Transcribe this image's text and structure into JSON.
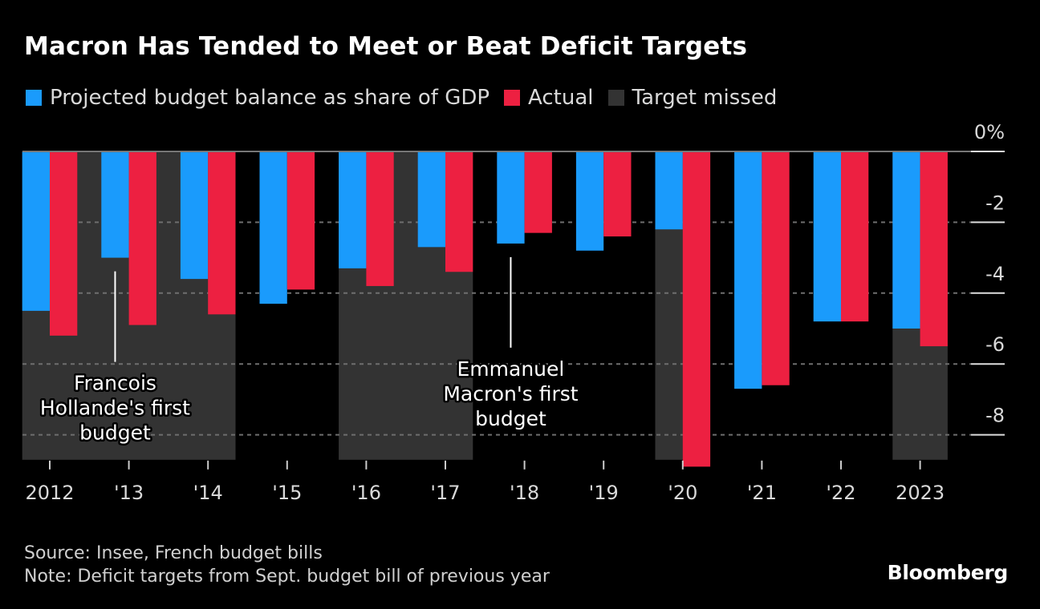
{
  "header": {
    "title": "Macron Has Tended to Meet or Beat Deficit Targets"
  },
  "legend": [
    {
      "label": "Projected budget balance as share of GDP",
      "color": "#1a9bfc"
    },
    {
      "label": "Actual",
      "color": "#ed2041"
    },
    {
      "label": "Target missed",
      "color": "#333333"
    }
  ],
  "footer": {
    "source": "Source: Insee, French budget bills",
    "note": "Note: Deficit targets from Sept. budget bill of previous year",
    "brand": "Bloomberg"
  },
  "chart_data": {
    "type": "bar",
    "title": "Macron Has Tended to Meet or Beat Deficit Targets",
    "xlabel": "",
    "ylabel": "",
    "unit": "% of GDP",
    "categories": [
      "2012",
      "'13",
      "'14",
      "'15",
      "'16",
      "'17",
      "'18",
      "'19",
      "'20",
      "'21",
      "'22",
      "2023"
    ],
    "series": [
      {
        "name": "Projected budget balance as share of GDP",
        "color": "#1a9bfc",
        "values": [
          -4.5,
          -3.0,
          -3.6,
          -4.3,
          -3.3,
          -2.7,
          -2.6,
          -2.8,
          -2.2,
          -6.7,
          -4.8,
          -5.0
        ]
      },
      {
        "name": "Actual",
        "color": "#ed2041",
        "values": [
          -5.2,
          -4.9,
          -4.6,
          -3.9,
          -3.8,
          -3.4,
          -2.3,
          -2.4,
          -8.9,
          -6.6,
          -4.8,
          -5.5
        ]
      }
    ],
    "target_missed": [
      true,
      true,
      true,
      false,
      true,
      true,
      false,
      false,
      true,
      false,
      false,
      true
    ],
    "target_missed_color": "#333333",
    "ylim": [
      -9,
      0
    ],
    "yticks": [
      {
        "value": 0,
        "label": "0%"
      },
      {
        "value": -2,
        "label": "-2"
      },
      {
        "value": -4,
        "label": "-4"
      },
      {
        "value": -6,
        "label": "-6"
      },
      {
        "value": -8,
        "label": "-8"
      }
    ],
    "y_axis_position": "right",
    "grid": true,
    "legend_position": "top-left",
    "annotations": [
      {
        "category": "'13",
        "lines": [
          "Francois",
          "Hollande's first",
          "budget"
        ]
      },
      {
        "category": "'18",
        "lines": [
          "Emmanuel",
          "Macron's first",
          "budget"
        ]
      }
    ]
  }
}
